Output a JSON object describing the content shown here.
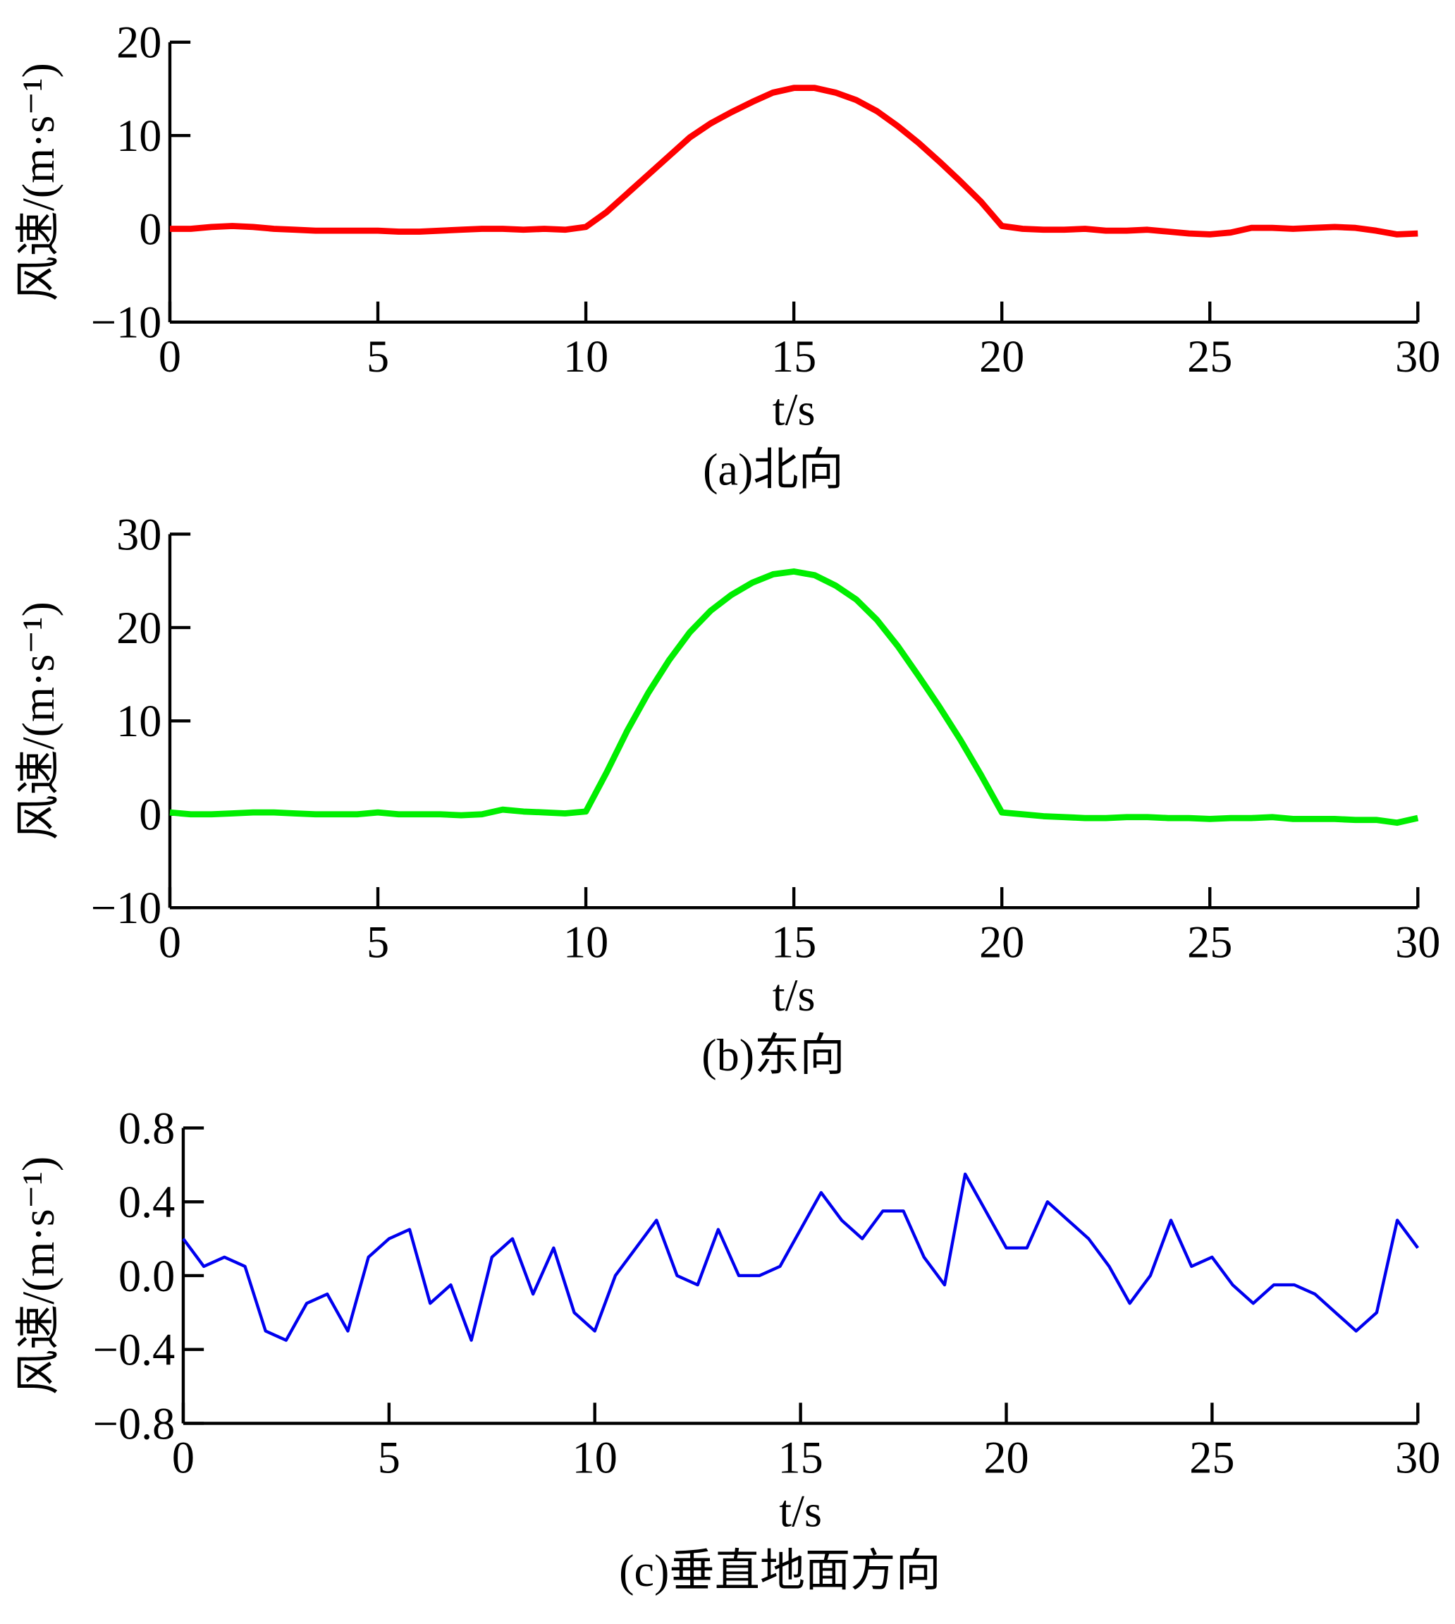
{
  "chart_data": [
    {
      "type": "line",
      "title": "(a)北向",
      "xlabel": "t/s",
      "ylabel": "风速/(m·s⁻¹)",
      "x": [
        0,
        0.5,
        1,
        1.5,
        2,
        2.5,
        3,
        3.5,
        4,
        4.5,
        5,
        5.5,
        6,
        6.5,
        7,
        7.5,
        8,
        8.5,
        9,
        9.5,
        10,
        10.5,
        11,
        11.5,
        12,
        12.5,
        13,
        13.5,
        14,
        14.5,
        15,
        15.5,
        16,
        16.5,
        17,
        17.5,
        18,
        18.5,
        19,
        19.5,
        20,
        20.5,
        21,
        21.5,
        22,
        22.5,
        23,
        23.5,
        24,
        24.5,
        25,
        25.5,
        26,
        26.5,
        27,
        27.5,
        28,
        28.5,
        29,
        29.5,
        30
      ],
      "series": [
        {
          "color": "#ff0000",
          "values": [
            0,
            0,
            0.2,
            0.3,
            0.2,
            0,
            -0.1,
            -0.2,
            -0.2,
            -0.2,
            -0.2,
            -0.3,
            -0.3,
            -0.2,
            -0.1,
            0,
            0,
            -0.1,
            0,
            -0.1,
            0.2,
            1.8,
            3.8,
            5.8,
            7.8,
            9.8,
            11.3,
            12.5,
            13.6,
            14.6,
            15.1,
            15.1,
            14.6,
            13.8,
            12.6,
            11,
            9.2,
            7.2,
            5.1,
            2.9,
            0.3,
            0,
            -0.1,
            -0.1,
            0,
            -0.2,
            -0.2,
            -0.1,
            -0.3,
            -0.5,
            -0.6,
            -0.4,
            0.1,
            0.1,
            0,
            0.1,
            0.2,
            0.1,
            -0.2,
            -0.6,
            -0.5
          ]
        }
      ],
      "xlim": [
        0,
        30
      ],
      "xticks": [
        0,
        5,
        10,
        15,
        20,
        25,
        30
      ],
      "ylim": [
        -10,
        20
      ],
      "yticks": [
        {
          "value": -10,
          "label": "−10"
        },
        0,
        10,
        20
      ]
    },
    {
      "type": "line",
      "title": "(b)东向",
      "xlabel": "t/s",
      "ylabel": "风速/(m·s⁻¹)",
      "x": [
        0,
        0.5,
        1,
        1.5,
        2,
        2.5,
        3,
        3.5,
        4,
        4.5,
        5,
        5.5,
        6,
        6.5,
        7,
        7.5,
        8,
        8.5,
        9,
        9.5,
        10,
        10.5,
        11,
        11.5,
        12,
        12.5,
        13,
        13.5,
        14,
        14.5,
        15,
        15.5,
        16,
        16.5,
        17,
        17.5,
        18,
        18.5,
        19,
        19.5,
        20,
        20.5,
        21,
        21.5,
        22,
        22.5,
        23,
        23.5,
        24,
        24.5,
        25,
        25.5,
        26,
        26.5,
        27,
        27.5,
        28,
        28.5,
        29,
        29.5,
        30
      ],
      "series": [
        {
          "color": "#00ee00",
          "values": [
            0.2,
            0,
            0,
            0.1,
            0.2,
            0.2,
            0.1,
            0,
            0,
            0,
            0.2,
            0,
            0,
            0,
            -0.1,
            0,
            0.5,
            0.3,
            0.2,
            0.1,
            0.3,
            4.5,
            9,
            13,
            16.5,
            19.5,
            21.8,
            23.5,
            24.8,
            25.7,
            26,
            25.6,
            24.5,
            23,
            20.8,
            18,
            14.8,
            11.5,
            8,
            4.2,
            0.2,
            0,
            -0.2,
            -0.3,
            -0.4,
            -0.4,
            -0.3,
            -0.3,
            -0.4,
            -0.4,
            -0.5,
            -0.4,
            -0.4,
            -0.3,
            -0.5,
            -0.5,
            -0.5,
            -0.6,
            -0.6,
            -0.9,
            -0.4
          ]
        }
      ],
      "xlim": [
        0,
        30
      ],
      "xticks": [
        0,
        5,
        10,
        15,
        20,
        25,
        30
      ],
      "ylim": [
        -10,
        30
      ],
      "yticks": [
        {
          "value": -10,
          "label": "−10"
        },
        0,
        10,
        20,
        30
      ]
    },
    {
      "type": "line",
      "title": "(c)垂直地面方向",
      "xlabel": "t/s",
      "ylabel": "风速/(m·s⁻¹)",
      "x": [
        0,
        0.5,
        1,
        1.5,
        2,
        2.5,
        3,
        3.5,
        4,
        4.5,
        5,
        5.5,
        6,
        6.5,
        7,
        7.5,
        8,
        8.5,
        9,
        9.5,
        10,
        10.5,
        11,
        11.5,
        12,
        12.5,
        13,
        13.5,
        14,
        14.5,
        15,
        15.5,
        16,
        16.5,
        17,
        17.5,
        18,
        18.5,
        19,
        19.5,
        20,
        20.5,
        21,
        21.5,
        22,
        22.5,
        23,
        23.5,
        24,
        24.5,
        25,
        25.5,
        26,
        26.5,
        27,
        27.5,
        28,
        28.5,
        29,
        29.5,
        30
      ],
      "series": [
        {
          "color": "#0000ee",
          "values": [
            0.2,
            0.05,
            0.1,
            0.05,
            -0.3,
            -0.35,
            -0.15,
            -0.1,
            -0.3,
            0.1,
            0.2,
            0.25,
            -0.15,
            -0.05,
            -0.35,
            0.1,
            0.2,
            -0.1,
            0.15,
            -0.2,
            -0.3,
            0,
            0.15,
            0.3,
            0,
            -0.05,
            0.25,
            0,
            0,
            0.05,
            0.25,
            0.45,
            0.3,
            0.2,
            0.35,
            0.35,
            0.1,
            -0.05,
            0.55,
            0.35,
            0.15,
            0.15,
            0.4,
            0.3,
            0.2,
            0.05,
            -0.15,
            0,
            0.3,
            0.05,
            0.1,
            -0.05,
            -0.15,
            -0.05,
            -0.05,
            -0.1,
            -0.2,
            -0.3,
            -0.2,
            0.3,
            0.15
          ]
        }
      ],
      "xlim": [
        0,
        30
      ],
      "xticks": [
        0,
        5,
        10,
        15,
        20,
        25,
        30
      ],
      "ylim": [
        -0.8,
        0.8
      ],
      "yticks": [
        {
          "value": -0.8,
          "label": "−0.8"
        },
        {
          "value": -0.4,
          "label": "−0.4"
        },
        {
          "value": 0,
          "label": "0.0"
        },
        0.4,
        0.8
      ]
    }
  ]
}
